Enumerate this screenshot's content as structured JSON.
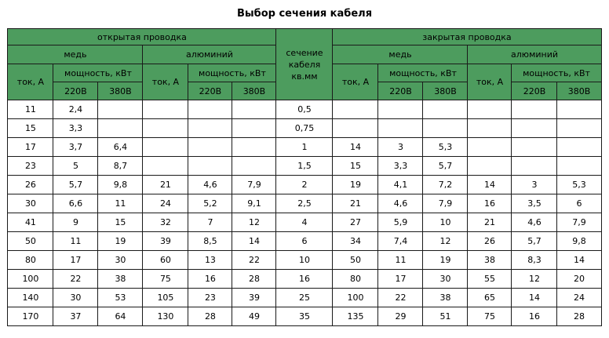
{
  "page": {
    "title": "Выбор сечения кабеля"
  },
  "colors": {
    "header_bg": "#4d9c5e",
    "border": "#1a1a1a",
    "text": "#000000",
    "page_bg": "#ffffff"
  },
  "chart_data": {
    "type": "table",
    "title": "Выбор сечения кабеля",
    "column_groups": [
      {
        "label": "открытая проводка",
        "span": 6
      },
      {
        "label": "сечение кабеля кв.мм",
        "span": 1
      },
      {
        "label": "закрытая проводка",
        "span": 6
      }
    ],
    "labels": {
      "open": "открытая проводка",
      "closed": "закрытая проводка",
      "section": "сечение\nкабеля\nкв.мм",
      "copper": "медь",
      "aluminum": "алюминий",
      "current": "ток, А",
      "power": "мощность, кВт",
      "v220": "220В",
      "v380": "380В"
    },
    "column_headers": [
      "ток, А",
      "220В",
      "380В",
      "ток, А",
      "220В",
      "380В",
      "сечение кабеля кв.мм",
      "ток, А",
      "220В",
      "380В",
      "ток, А",
      "220В",
      "380В"
    ],
    "rows": [
      [
        "11",
        "2,4",
        "",
        "",
        "",
        "",
        "0,5",
        "",
        "",
        "",
        "",
        "",
        ""
      ],
      [
        "15",
        "3,3",
        "",
        "",
        "",
        "",
        "0,75",
        "",
        "",
        "",
        "",
        "",
        ""
      ],
      [
        "17",
        "3,7",
        "6,4",
        "",
        "",
        "",
        "1",
        "14",
        "3",
        "5,3",
        "",
        "",
        ""
      ],
      [
        "23",
        "5",
        "8,7",
        "",
        "",
        "",
        "1,5",
        "15",
        "3,3",
        "5,7",
        "",
        "",
        ""
      ],
      [
        "26",
        "5,7",
        "9,8",
        "21",
        "4,6",
        "7,9",
        "2",
        "19",
        "4,1",
        "7,2",
        "14",
        "3",
        "5,3"
      ],
      [
        "30",
        "6,6",
        "11",
        "24",
        "5,2",
        "9,1",
        "2,5",
        "21",
        "4,6",
        "7,9",
        "16",
        "3,5",
        "6"
      ],
      [
        "41",
        "9",
        "15",
        "32",
        "7",
        "12",
        "4",
        "27",
        "5,9",
        "10",
        "21",
        "4,6",
        "7,9"
      ],
      [
        "50",
        "11",
        "19",
        "39",
        "8,5",
        "14",
        "6",
        "34",
        "7,4",
        "12",
        "26",
        "5,7",
        "9,8"
      ],
      [
        "80",
        "17",
        "30",
        "60",
        "13",
        "22",
        "10",
        "50",
        "11",
        "19",
        "38",
        "8,3",
        "14"
      ],
      [
        "100",
        "22",
        "38",
        "75",
        "16",
        "28",
        "16",
        "80",
        "17",
        "30",
        "55",
        "12",
        "20"
      ],
      [
        "140",
        "30",
        "53",
        "105",
        "23",
        "39",
        "25",
        "100",
        "22",
        "38",
        "65",
        "14",
        "24"
      ],
      [
        "170",
        "37",
        "64",
        "130",
        "28",
        "49",
        "35",
        "135",
        "29",
        "51",
        "75",
        "16",
        "28"
      ]
    ]
  }
}
